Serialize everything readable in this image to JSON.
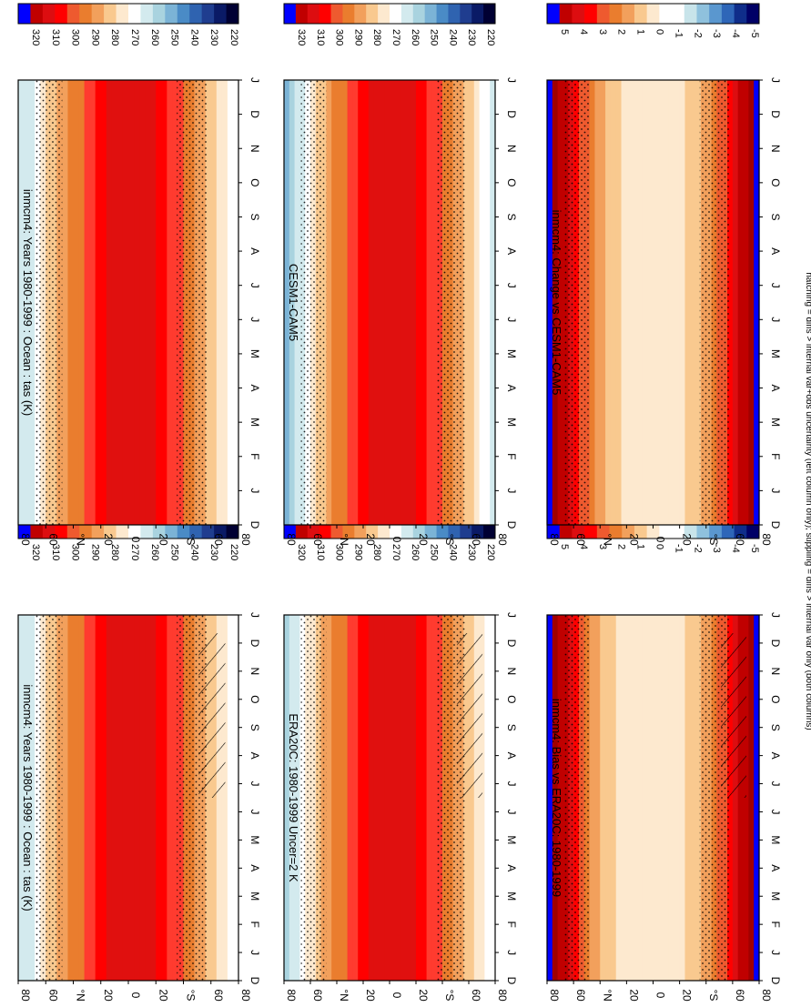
{
  "footer_note": "hatching = diffs > internal var+obs uncertainty (left column only); stippling = diffs > internal var only (both columns)",
  "colors": {
    "temp_scale": [
      "#000033",
      "#0a1a66",
      "#1f3d8f",
      "#2f63b0",
      "#4a8bc6",
      "#7bb3d6",
      "#a9d3df",
      "#d3eaee",
      "#ffffff",
      "#fde9cf",
      "#f9c98f",
      "#f2a05c",
      "#ea7d2e",
      "#ee5a2f",
      "#ff0000",
      "#dd0d10",
      "#c00000",
      "#0000ff"
    ],
    "diff_scale": [
      "#000066",
      "#0f2d8a",
      "#2e66b8",
      "#5a97cf",
      "#8fc1dd",
      "#c8e4ea",
      "#ffffff",
      "#ffffff",
      "#fde9cf",
      "#f9c98f",
      "#f2a05c",
      "#ea7d2e",
      "#ee5a2f",
      "#ff0000",
      "#dd0d10",
      "#c00000",
      "#0000ff"
    ]
  },
  "chart_data": [
    {
      "type": "heatmap",
      "panel": "top-left",
      "title": "inmcm4: Years 1980-1999 : Ocean : tas (K)",
      "x_ticks": [
        "D",
        "J",
        "F",
        "M",
        "A",
        "M",
        "J",
        "J",
        "A",
        "S",
        "O",
        "N",
        "D",
        "J"
      ],
      "y_ticks": [
        "80",
        "60",
        "°N",
        "20",
        "0",
        "20",
        "°S",
        "60",
        "80"
      ],
      "colorbar_ticks": [
        "320",
        "310",
        "300",
        "290",
        "280",
        "270",
        "260",
        "250",
        "240",
        "230",
        "220"
      ],
      "latitudes": [
        80,
        60,
        40,
        20,
        0,
        -20,
        -40,
        -60,
        -80
      ],
      "z_lat_profile_K": [
        255,
        272,
        285,
        296,
        300,
        297,
        288,
        276,
        262
      ],
      "grid": false,
      "hatching": true,
      "stippling": true
    },
    {
      "type": "heatmap",
      "panel": "top-right",
      "title": "inmcm4: Years 1980-1999 : Ocean : tas (K)",
      "x_ticks": [
        "D",
        "J",
        "F",
        "M",
        "A",
        "M",
        "J",
        "J",
        "A",
        "S",
        "O",
        "N",
        "D",
        "J"
      ],
      "y_ticks": [
        "80",
        "60",
        "°N",
        "20",
        "0",
        "20",
        "°S",
        "60",
        "80"
      ],
      "colorbar_ticks": [
        "320",
        "310",
        "300",
        "290",
        "280",
        "270",
        "260",
        "250",
        "240",
        "230",
        "220"
      ],
      "latitudes": [
        80,
        60,
        40,
        20,
        0,
        -20,
        -40,
        -60,
        -80
      ],
      "z_lat_profile_K": [
        255,
        272,
        285,
        296,
        300,
        297,
        288,
        276,
        262
      ],
      "grid": false,
      "hatching": false,
      "stippling": true
    },
    {
      "type": "heatmap",
      "panel": "middle-left",
      "title": "ERA20C: 1980-1999 Uncer=2 K",
      "x_ticks": [
        "D",
        "J",
        "F",
        "M",
        "A",
        "M",
        "J",
        "J",
        "A",
        "S",
        "O",
        "N",
        "D",
        "J"
      ],
      "y_ticks": [
        "80",
        "60",
        "°N",
        "20",
        "0",
        "20",
        "°S",
        "60",
        "80"
      ],
      "colorbar_ticks": [
        "320",
        "310",
        "300",
        "290",
        "280",
        "270",
        "260",
        "250",
        "240",
        "230",
        "220"
      ],
      "latitudes": [
        80,
        60,
        40,
        20,
        0,
        -20,
        -40,
        -60,
        -80
      ],
      "z_lat_profile_K": [
        252,
        271,
        285,
        296,
        300,
        297,
        288,
        276,
        264
      ],
      "grid": false,
      "hatching": true,
      "stippling": true
    },
    {
      "type": "heatmap",
      "panel": "middle-right",
      "title": "CESM1-CAM5",
      "x_ticks": [
        "D",
        "J",
        "F",
        "M",
        "A",
        "M",
        "J",
        "J",
        "A",
        "S",
        "O",
        "N",
        "D",
        "J"
      ],
      "y_ticks": [
        "80",
        "60",
        "°N",
        "20",
        "0",
        "20",
        "°S",
        "60",
        "80"
      ],
      "colorbar_ticks": [
        "320",
        "310",
        "300",
        "290",
        "280",
        "270",
        "260",
        "250",
        "240",
        "230",
        "220"
      ],
      "latitudes": [
        80,
        60,
        40,
        20,
        0,
        -20,
        -40,
        -60,
        -80
      ],
      "z_lat_profile_K": [
        248,
        270,
        285,
        296,
        300,
        297,
        288,
        275,
        260
      ],
      "grid": false,
      "hatching": false,
      "stippling": true
    },
    {
      "type": "heatmap",
      "panel": "bottom-left",
      "title": "inmcm4: Bias vs ERA20C: 1980-1999",
      "x_ticks": [
        "D",
        "J",
        "F",
        "M",
        "A",
        "M",
        "J",
        "J",
        "A",
        "S",
        "O",
        "N",
        "D",
        "J"
      ],
      "y_ticks": [
        "80",
        "60",
        "°N",
        "20",
        "0",
        "20",
        "°S",
        "60",
        "80"
      ],
      "colorbar_ticks": [
        "5",
        "4",
        "3",
        "2",
        "1",
        "0",
        "-1",
        "-2",
        "-3",
        "-4",
        "-5"
      ],
      "latitudes": [
        80,
        60,
        40,
        20,
        0,
        -20,
        -40,
        -60,
        -80
      ],
      "z_lat_profile_K": [
        5,
        3,
        1,
        0.5,
        0.3,
        0.5,
        1.5,
        3,
        5
      ],
      "grid": false,
      "hatching": true,
      "stippling": true
    },
    {
      "type": "heatmap",
      "panel": "bottom-right",
      "title": "inmcm4: Change vs CESM1-CAM5",
      "x_ticks": [
        "D",
        "J",
        "F",
        "M",
        "A",
        "M",
        "J",
        "J",
        "A",
        "S",
        "O",
        "N",
        "D",
        "J"
      ],
      "y_ticks": [
        "80",
        "60",
        "°N",
        "20",
        "0",
        "20",
        "°S",
        "60",
        "80"
      ],
      "colorbar_ticks": [
        "5",
        "4",
        "3",
        "2",
        "1",
        "0",
        "-1",
        "-2",
        "-3",
        "-4",
        "-5"
      ],
      "latitudes": [
        80,
        60,
        40,
        20,
        0,
        -20,
        -40,
        -60,
        -80
      ],
      "z_lat_profile_K": [
        5,
        3,
        1.5,
        0.5,
        0.3,
        0.5,
        1.5,
        3,
        5
      ],
      "grid": false,
      "hatching": false,
      "stippling": true
    }
  ]
}
